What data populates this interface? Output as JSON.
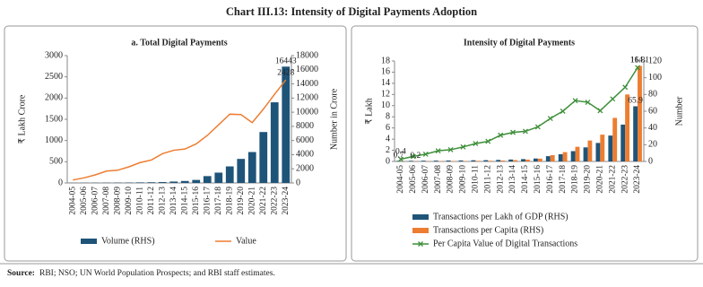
{
  "title": "Chart III.13: Intensity of Digital Payments Adoption",
  "source_label": "Source:",
  "source": "RBI; NSO; UN World Population Prospects; and RBI staff estimates.",
  "chart_data": [
    {
      "type": "combo",
      "title": "a. Total Digital Payments",
      "ylabel": "₹ Lakh Crore",
      "y2label": "Number in Crore",
      "categories": [
        "2004-05",
        "2005-06",
        "2006-07",
        "2007-08",
        "2008-09",
        "2009-10",
        "2010-11",
        "2011-12",
        "2012-13",
        "2013-14",
        "2014-15",
        "2015-16",
        "2016-17",
        "2017-18",
        "2018-19",
        "2019-20",
        "2020-21",
        "2021-22",
        "2022-23",
        "2023-24"
      ],
      "series": [
        {
          "name": "Volume (RHS)",
          "type": "bar",
          "axis": "y2",
          "color": "#1f5479",
          "values": [
            20,
            25,
            30,
            40,
            50,
            60,
            80,
            100,
            130,
            200,
            280,
            430,
            970,
            1460,
            2340,
            3400,
            4370,
            7200,
            11400,
            16443
          ],
          "value_labels": [
            null,
            null,
            null,
            null,
            null,
            null,
            null,
            null,
            null,
            null,
            null,
            null,
            null,
            null,
            null,
            null,
            null,
            null,
            null,
            "16443"
          ]
        },
        {
          "name": "Value",
          "type": "line",
          "axis": "y",
          "color": "#ed7d31",
          "values": [
            70,
            120,
            190,
            280,
            300,
            380,
            480,
            540,
            690,
            770,
            800,
            920,
            1120,
            1370,
            1620,
            1610,
            1420,
            1740,
            2090,
            2428
          ],
          "value_labels": [
            null,
            null,
            null,
            null,
            null,
            null,
            null,
            null,
            null,
            null,
            null,
            null,
            null,
            null,
            null,
            null,
            null,
            null,
            null,
            "2428"
          ]
        }
      ],
      "ylim": [
        0,
        3000
      ],
      "yticks": [
        0,
        500,
        1000,
        1500,
        2000,
        2500,
        3000
      ],
      "y2lim": [
        0,
        18000
      ],
      "y2ticks": [
        0,
        2000,
        4000,
        6000,
        8000,
        10000,
        12000,
        14000,
        16000,
        18000
      ],
      "legend": "bottom"
    },
    {
      "type": "combo",
      "title": "Intensity of Digital Payments",
      "ylabel": "₹ Lakh",
      "y2label": "Number",
      "categories": [
        "2004-05",
        "2005-06",
        "2006-07",
        "2007-08",
        "2008-09",
        "2009-10",
        "2010-11",
        "2011-12",
        "2012-13",
        "2013-14",
        "2014-15",
        "2015-16",
        "2016-17",
        "2017-18",
        "2018-19",
        "2019-20",
        "2020-21",
        "2021-22",
        "2022-23",
        "2023-24"
      ],
      "series": [
        {
          "name": "Transactions per Lakh of GDP (RHS)",
          "type": "bar",
          "axis": "y2",
          "color": "#1f5479",
          "values": [
            0.7,
            0.8,
            0.9,
            1.0,
            1.1,
            1.2,
            1.4,
            1.5,
            1.8,
            2.3,
            2.8,
            3.5,
            6.3,
            8.6,
            12.3,
            16.8,
            22.1,
            30.9,
            44.0,
            65.9
          ],
          "value_labels": [
            "0.7",
            null,
            null,
            null,
            null,
            null,
            null,
            null,
            null,
            null,
            null,
            null,
            null,
            null,
            null,
            null,
            null,
            null,
            null,
            "65.9"
          ]
        },
        {
          "name": "Transactions per Capita (RHS)",
          "type": "bar",
          "axis": "y2",
          "color": "#ed7d31",
          "values": [
            0.2,
            0.2,
            0.3,
            0.4,
            0.5,
            0.5,
            0.7,
            0.8,
            1.1,
            1.6,
            2.2,
            3.3,
            7.5,
            11.1,
            17.5,
            25.0,
            32.0,
            52.0,
            80.0,
            114.1
          ],
          "value_labels": [
            null,
            "0.2",
            null,
            null,
            null,
            null,
            null,
            null,
            null,
            null,
            null,
            null,
            null,
            null,
            null,
            null,
            null,
            null,
            null,
            "114.1"
          ]
        },
        {
          "name": "Per Capita Value of Digital Transactions",
          "type": "line",
          "axis": "y",
          "color": "#3f8f3a",
          "marker": "x",
          "values": [
            0.4,
            0.9,
            1.3,
            1.9,
            2.1,
            2.6,
            3.2,
            3.6,
            4.7,
            5.2,
            5.4,
            6.2,
            7.7,
            9.0,
            10.9,
            10.6,
            9.1,
            11.2,
            13.3,
            16.8
          ],
          "value_labels": [
            "0.4",
            null,
            null,
            null,
            null,
            null,
            null,
            null,
            null,
            null,
            null,
            null,
            null,
            null,
            null,
            null,
            null,
            null,
            null,
            "16.8"
          ]
        }
      ],
      "ylim": [
        0,
        18
      ],
      "yticks": [
        0,
        2,
        4,
        6,
        8,
        10,
        12,
        14,
        16,
        18
      ],
      "y2lim": [
        0,
        120
      ],
      "y2ticks": [
        0,
        20,
        40,
        60,
        80,
        100,
        120
      ],
      "legend": "bottom"
    }
  ]
}
